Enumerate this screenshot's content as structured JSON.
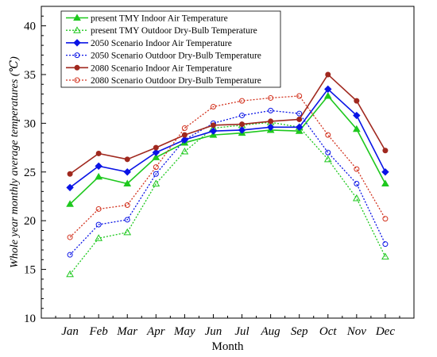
{
  "chart_data": {
    "type": "line",
    "xlabel": "Month",
    "ylabel": "Whole year monthly average temperatures (℃)",
    "ylim": [
      10,
      42
    ],
    "yticks": [
      10,
      15,
      20,
      25,
      30,
      35,
      40
    ],
    "categories": [
      "Jan",
      "Feb",
      "Mar",
      "Apr",
      "May",
      "Jun",
      "Jul",
      "Aug",
      "Sep",
      "Oct",
      "Nov",
      "Dec"
    ],
    "grid": false,
    "legend_position": "top-left",
    "series": [
      {
        "name": "present TMY Indoor Air Temperature",
        "color": "#1ec81e",
        "line_style": "solid",
        "marker": "filled-triangle",
        "values": [
          21.7,
          24.5,
          23.8,
          26.5,
          28.0,
          28.8,
          29.0,
          29.3,
          29.2,
          32.8,
          29.4,
          23.8
        ]
      },
      {
        "name": "present TMY Outdoor Dry-Bulb Temperature",
        "color": "#1ec81e",
        "line_style": "dotted",
        "marker": "open-triangle",
        "values": [
          14.5,
          18.2,
          18.8,
          23.8,
          27.1,
          29.5,
          29.8,
          30.1,
          29.6,
          26.3,
          22.3,
          16.3
        ]
      },
      {
        "name": "2050 Scenario Indoor Air Temperature",
        "color": "#0a14e6",
        "line_style": "solid",
        "marker": "filled-diamond",
        "values": [
          23.4,
          25.6,
          25.0,
          27.0,
          28.3,
          29.2,
          29.3,
          29.6,
          29.6,
          33.5,
          30.8,
          25.0
        ]
      },
      {
        "name": "2050 Scenario Outdoor Dry-Bulb Temperature",
        "color": "#0a14e6",
        "line_style": "dotted",
        "marker": "open-circle",
        "values": [
          16.5,
          19.6,
          20.1,
          24.8,
          28.3,
          30.0,
          30.8,
          31.3,
          31.0,
          27.0,
          23.8,
          17.6
        ]
      },
      {
        "name": "2080 Scenario Indoor Air Temperature",
        "color": "#a0281e",
        "line_style": "solid",
        "marker": "filled-circle",
        "values": [
          24.8,
          26.9,
          26.3,
          27.5,
          28.8,
          29.8,
          29.9,
          30.2,
          30.4,
          35.0,
          32.3,
          27.2
        ]
      },
      {
        "name": "2080 Scenario Outdoor Dry-Bulb Temperature",
        "color": "#d2321e",
        "line_style": "dotted",
        "marker": "open-circle",
        "values": [
          18.3,
          21.2,
          21.6,
          25.5,
          29.5,
          31.7,
          32.3,
          32.6,
          32.8,
          28.8,
          25.3,
          20.2
        ]
      }
    ]
  }
}
